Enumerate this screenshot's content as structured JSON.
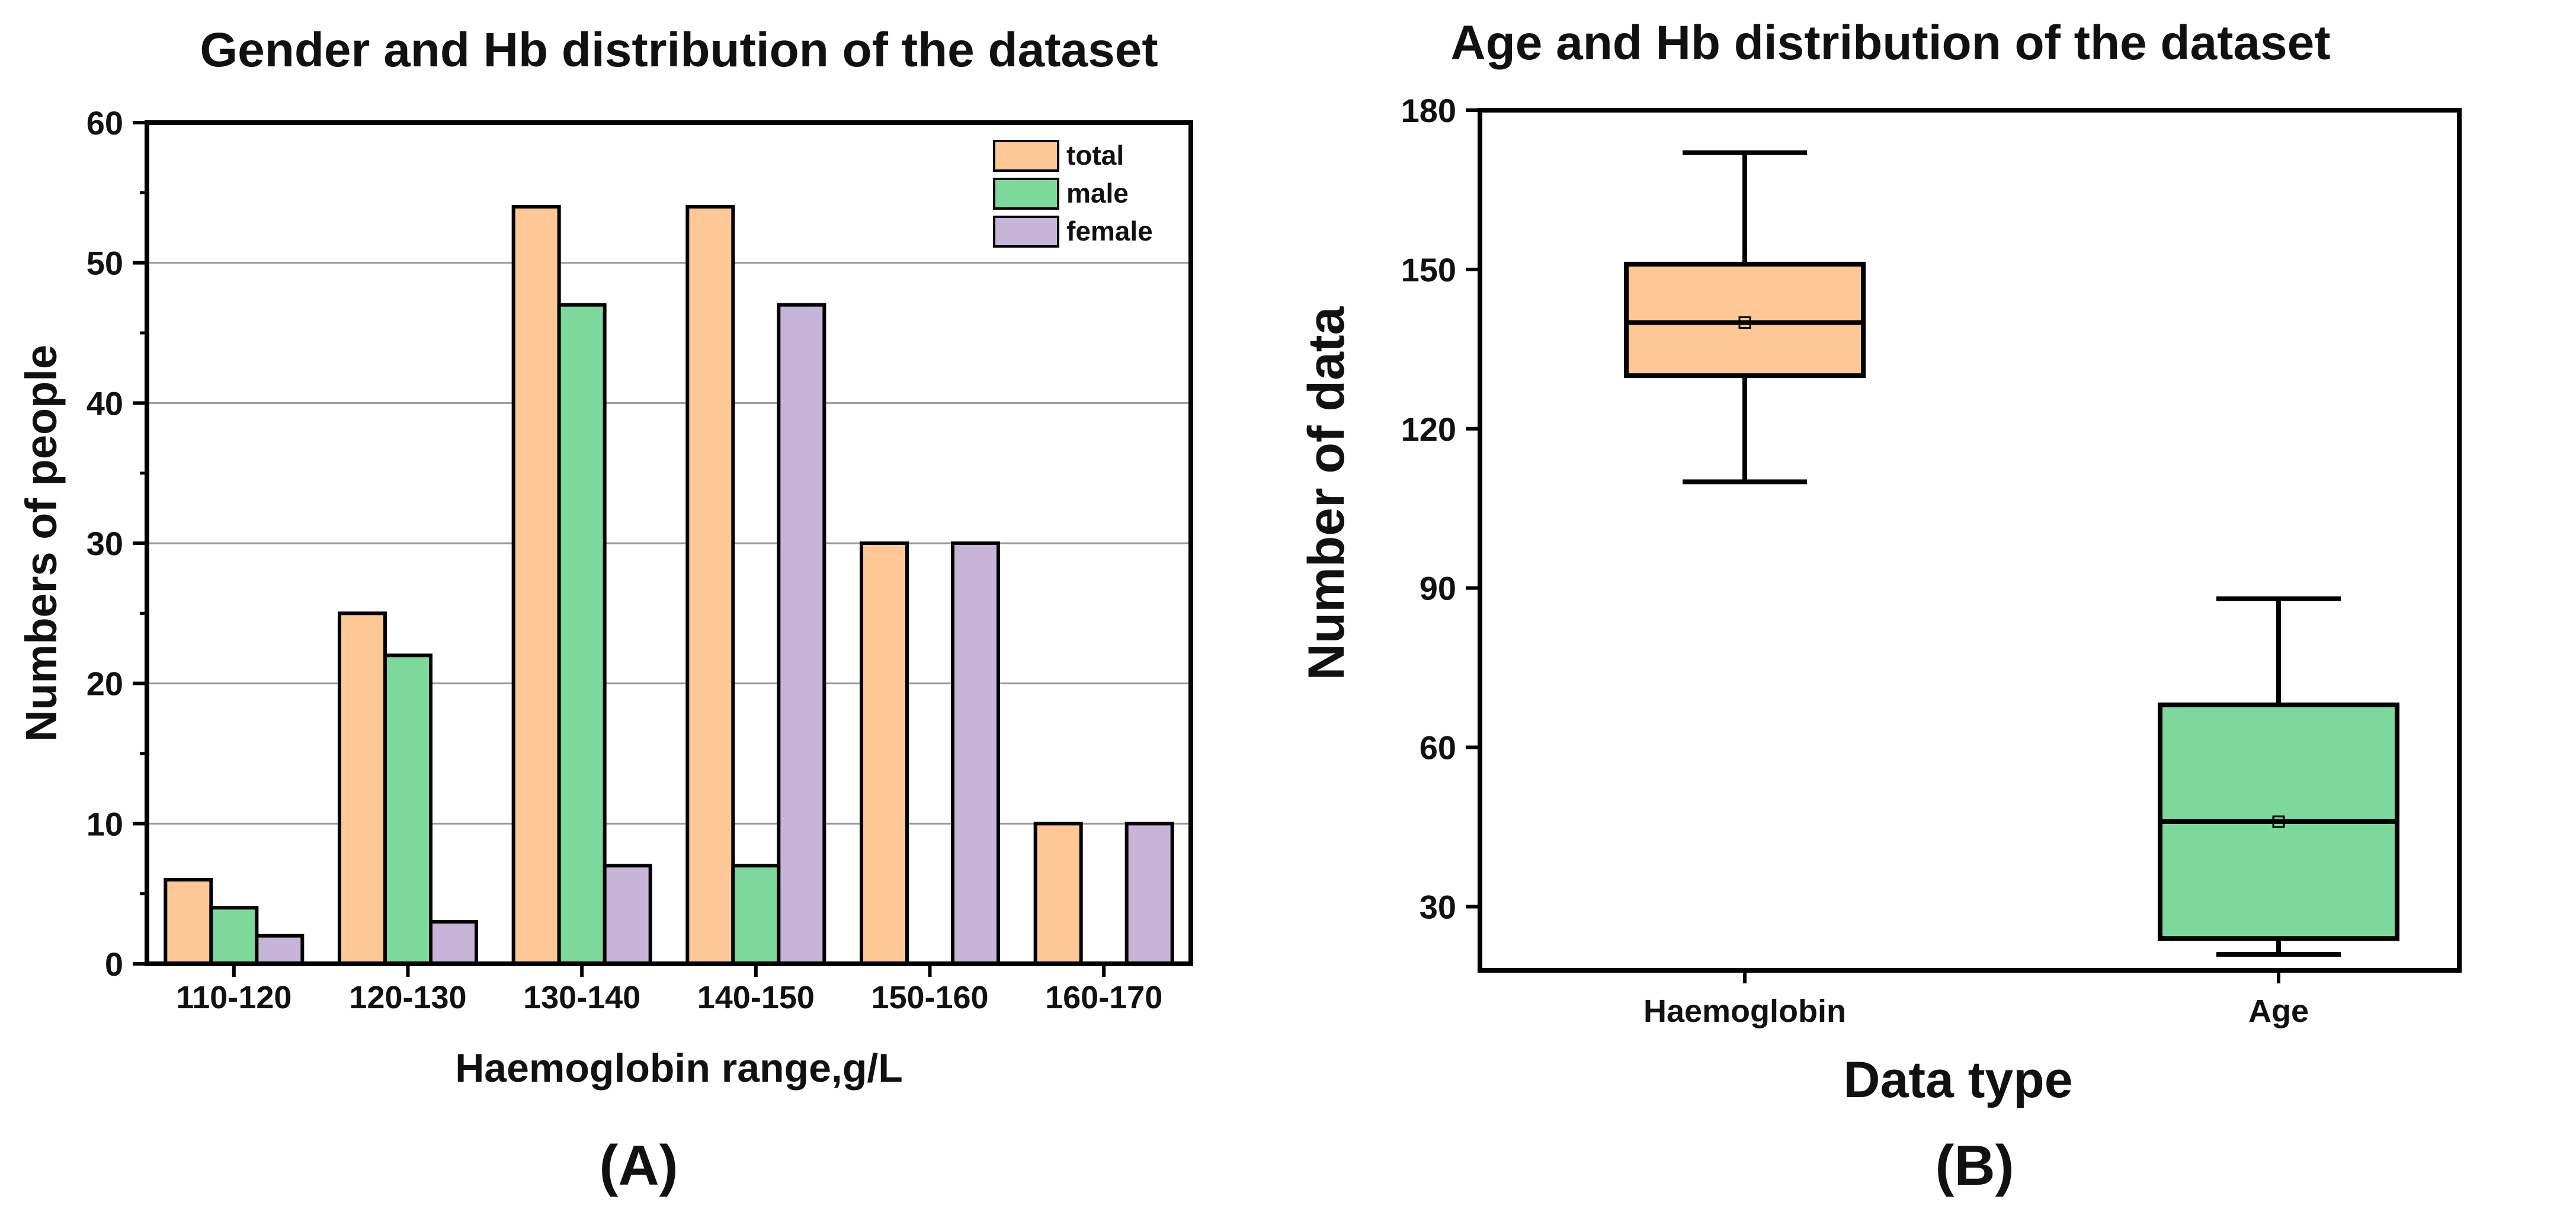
{
  "colors": {
    "total": "#FDC896",
    "male": "#7DD89B",
    "female": "#C7B4D9",
    "grid": "#9a9a9a",
    "axis": "#000000"
  },
  "panel_a": {
    "label": "(A)",
    "chart_data": {
      "type": "bar",
      "title": "Gender and Hb distribution of the dataset",
      "xlabel": "Haemoglobin range,g/L",
      "ylabel": "Numbers of people",
      "ylim": [
        0,
        60
      ],
      "yticks": [
        "0",
        "10",
        "20",
        "30",
        "40",
        "50",
        "60"
      ],
      "grid": true,
      "legend_position": "top-right",
      "categories": [
        "110-120",
        "120-130",
        "130-140",
        "140-150",
        "150-160",
        "160-170"
      ],
      "series": [
        {
          "name": "total",
          "values": [
            6,
            25,
            54,
            54,
            30,
            10
          ]
        },
        {
          "name": "male",
          "values": [
            4,
            22,
            47,
            7,
            0,
            0
          ]
        },
        {
          "name": "female",
          "values": [
            2,
            3,
            7,
            47,
            30,
            10
          ]
        }
      ]
    }
  },
  "panel_b": {
    "label": "(B)",
    "chart_data": {
      "type": "box",
      "title": "Age and Hb distribution of the dataset",
      "xlabel": "Data type",
      "ylabel": "Number of data",
      "ylim": [
        18,
        180
      ],
      "yticks": [
        "30",
        "60",
        "90",
        "120",
        "150",
        "180"
      ],
      "categories": [
        "Haemoglobin",
        "Age"
      ],
      "boxes": [
        {
          "name": "Haemoglobin",
          "min": 110,
          "q1": 130,
          "median": 140,
          "mean": 140,
          "q3": 151,
          "max": 172
        },
        {
          "name": "Age",
          "min": 21,
          "q1": 24,
          "median": 46,
          "mean": 46,
          "q3": 68,
          "max": 88
        }
      ]
    }
  }
}
